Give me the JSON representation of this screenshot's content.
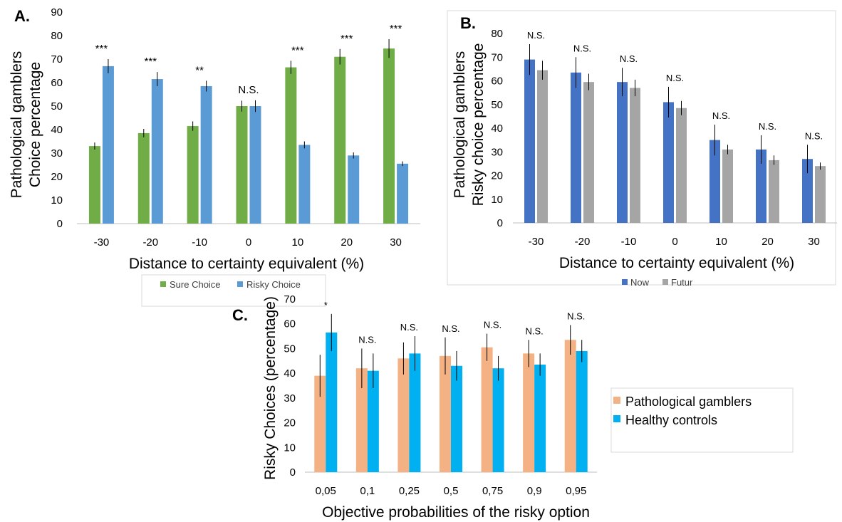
{
  "chart_data": [
    {
      "panel": "A.",
      "type": "bar",
      "categories": [
        "-30",
        "-20",
        "-10",
        "0",
        "10",
        "20",
        "30"
      ],
      "series": [
        {
          "name": "Sure Choice",
          "color": "#70ad47",
          "values": [
            33,
            38.5,
            41.5,
            50,
            66.5,
            71,
            74.5
          ],
          "errors": [
            1.5,
            1.8,
            2,
            2.3,
            2.8,
            3.3,
            4
          ]
        },
        {
          "name": "Risky Choice",
          "color": "#5b9bd5",
          "values": [
            67,
            61.5,
            58.5,
            50,
            33.5,
            29,
            25.5
          ],
          "errors": [
            3,
            3,
            2.3,
            2.5,
            1.5,
            1.3,
            1
          ]
        }
      ],
      "significance": [
        "***",
        "***",
        "**",
        "N.S.",
        "***",
        "***",
        "***"
      ],
      "ylabel_lines": [
        "Pathological gamblers",
        "Choice percentage"
      ],
      "xlabel": "Distance to certainty equivalent (%)",
      "ylim": [
        0,
        90
      ],
      "yticks": [
        0,
        10,
        20,
        30,
        40,
        50,
        60,
        70,
        80,
        90
      ],
      "legend": "bottom",
      "grid": false
    },
    {
      "panel": "B.",
      "type": "bar",
      "categories": [
        "-30",
        "-20",
        "-10",
        "0",
        "10",
        "20",
        "30"
      ],
      "series": [
        {
          "name": "Now",
          "color": "#4472c4",
          "values": [
            69,
            63.5,
            59.5,
            51,
            35,
            31,
            27
          ],
          "errors": [
            6.5,
            6.5,
            6,
            6.5,
            6.5,
            6,
            6
          ]
        },
        {
          "name": "Futur",
          "color": "#a5a5a5",
          "values": [
            64.5,
            59.5,
            57,
            48.5,
            31,
            26.5,
            24
          ],
          "errors": [
            4,
            3.5,
            3.5,
            3,
            2,
            2,
            1.5
          ]
        }
      ],
      "significance": [
        "N.S.",
        "N.S.",
        "N.S.",
        "N.S.",
        "N.S.",
        "N.S.",
        "N.S."
      ],
      "ylabel_lines": [
        "Pathological gamblers",
        "Risky choice percentage"
      ],
      "xlabel": "Distance to certainty equivalent (%)",
      "ylim": [
        0,
        80
      ],
      "yticks": [
        0,
        10,
        20,
        30,
        40,
        50,
        60,
        70,
        80
      ],
      "legend": "bottom",
      "grid": false
    },
    {
      "panel": "C.",
      "type": "bar",
      "categories": [
        "0,05",
        "0,1",
        "0,25",
        "0,5",
        "0,75",
        "0,9",
        "0,95"
      ],
      "series": [
        {
          "name": "Pathological gamblers",
          "color": "#f4b183",
          "values": [
            39,
            42,
            46,
            47,
            50.5,
            48,
            53.5
          ],
          "errors": [
            8.5,
            8,
            6.5,
            7.5,
            5.5,
            5.5,
            6
          ]
        },
        {
          "name": "Healthy controls",
          "color": "#00b0f0",
          "values": [
            56.5,
            41,
            48,
            43,
            42,
            43.5,
            49
          ],
          "errors": [
            7.5,
            7,
            7,
            6,
            5,
            4.5,
            4.5
          ]
        }
      ],
      "significance": [
        "*",
        "N.S.",
        "N.S.",
        "N.S.",
        "N.S.",
        "N.S.",
        "N.S."
      ],
      "ylabel": "Risky Choices (percentage)",
      "xlabel": "Objective probabilities of the risky option",
      "ylim": [
        0,
        70
      ],
      "yticks": [
        0,
        10,
        20,
        30,
        40,
        50,
        60,
        70
      ],
      "legend": "right",
      "grid": false
    }
  ]
}
